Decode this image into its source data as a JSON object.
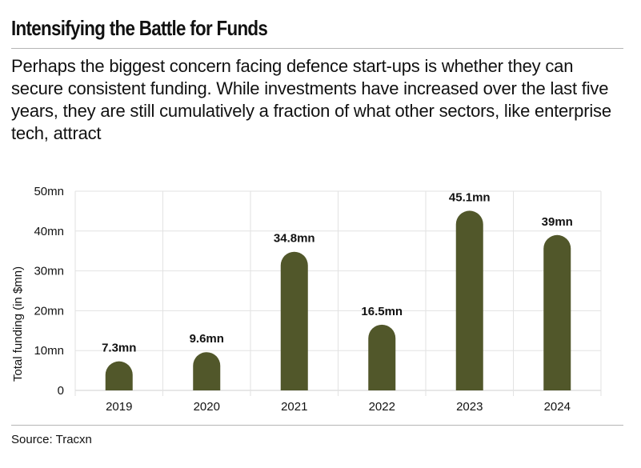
{
  "title": "Intensifying the Battle for Funds",
  "subtitle": "Perhaps the biggest concern facing defence start-ups is whether they can secure consistent funding. While investments have increased over the last five years, they are still cumulatively a fraction of what other sectors, like enterprise tech, attract",
  "source": "Source: Tracxn",
  "colors": {
    "bar": "#51572a",
    "grid": "#e2e2e2",
    "text": "#111111"
  },
  "chart_data": {
    "type": "bar",
    "categories": [
      "2019",
      "2020",
      "2021",
      "2022",
      "2023",
      "2024"
    ],
    "values": [
      7.3,
      9.6,
      34.8,
      16.5,
      45.1,
      39
    ],
    "data_labels": [
      "7.3mn",
      "9.6mn",
      "34.8mn",
      "16.5mn",
      "45.1mn",
      "39mn"
    ],
    "ylabel": "Total funding (in $mn)",
    "xlabel": "",
    "ylim": [
      0,
      50
    ],
    "yticks": [
      0,
      10,
      20,
      30,
      40,
      50
    ],
    "ytick_labels": [
      "0",
      "10mn",
      "20mn",
      "30mn",
      "40mn",
      "50mn"
    ],
    "grid": true
  }
}
